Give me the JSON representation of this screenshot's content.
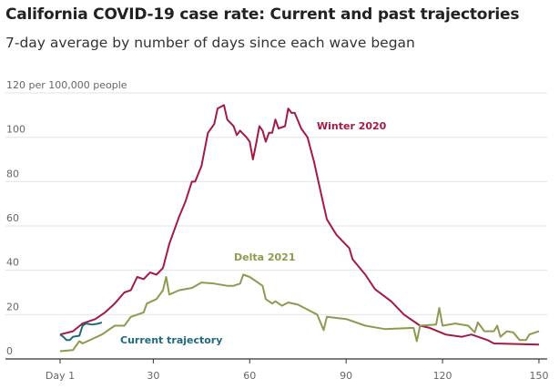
{
  "title": "California COVID-19 case rate: Current and past trajectories",
  "subtitle": "7-day average by number of days since each wave began",
  "chart_data": {
    "type": "line",
    "title": "California COVID-19 case rate: Current and past trajectories",
    "subtitle": "7-day average by number of days since each wave began",
    "ylabel": "per 100,000 people",
    "xlim": [
      1,
      150
    ],
    "ylim": [
      0,
      120
    ],
    "x_ticks": [
      1,
      30,
      60,
      90,
      120,
      150
    ],
    "x_tick_labels": [
      "Day 1",
      "30",
      "60",
      "90",
      "120",
      "150"
    ],
    "y_ticks": [
      0,
      20,
      40,
      60,
      80,
      100,
      120
    ],
    "y_tick_labels": [
      "0",
      "20",
      "40",
      "60",
      "80",
      "100",
      "120 per 100,000 people"
    ],
    "grid": true,
    "series": [
      {
        "name": "Winter 2020",
        "color": "#a31b43",
        "x": [
          1,
          5,
          8,
          12,
          15,
          18,
          21,
          23,
          25,
          27,
          29,
          31,
          33,
          35,
          38,
          40,
          42,
          43,
          45,
          47,
          49,
          50,
          52,
          53,
          55,
          56,
          57,
          59,
          60,
          61,
          62,
          63,
          64,
          65,
          66,
          67,
          68,
          69,
          71,
          72,
          73,
          74,
          76,
          78,
          80,
          82,
          84,
          87,
          91,
          92,
          96,
          99,
          104,
          108,
          113,
          116,
          121,
          126,
          129,
          134,
          136,
          150
        ],
        "y": [
          11,
          12.5,
          16,
          18,
          21,
          25,
          30,
          31,
          37,
          36,
          39,
          38,
          41,
          52,
          64,
          71,
          80,
          80,
          87,
          102,
          106,
          113,
          114.5,
          108,
          105,
          101,
          103,
          100,
          98,
          90,
          97,
          105,
          103,
          98,
          102,
          102,
          108,
          104,
          105,
          113,
          111,
          111,
          104,
          100,
          89,
          76,
          63,
          56,
          50,
          45,
          38,
          31.5,
          26,
          20,
          15,
          14,
          11,
          10,
          11,
          8.5,
          7,
          6.5
        ]
      },
      {
        "name": "Delta 2021",
        "color": "#8f9a50",
        "x": [
          1,
          5,
          7,
          8,
          11,
          14,
          18,
          21,
          23,
          27,
          28,
          31,
          33,
          34,
          35,
          38,
          42,
          45,
          49,
          53,
          55,
          57,
          58,
          60,
          62,
          64,
          65,
          67,
          68,
          70,
          72,
          75,
          77,
          81,
          83,
          84,
          90,
          96,
          102,
          111,
          112,
          113,
          118,
          119,
          120,
          124,
          128,
          130,
          131,
          133,
          136,
          137,
          138,
          140,
          142,
          144,
          146,
          147,
          150
        ],
        "y": [
          3.5,
          4,
          8,
          7,
          9,
          11,
          15,
          15,
          19,
          21,
          25,
          27,
          31,
          37,
          29,
          31,
          32,
          34.5,
          34,
          33,
          33,
          34,
          38,
          37,
          35,
          33,
          27,
          25,
          26,
          24,
          25.5,
          24.5,
          23,
          20,
          13,
          19,
          18,
          15,
          13.5,
          14,
          8,
          15,
          15.5,
          23,
          15,
          16,
          15,
          12,
          16.5,
          12.5,
          12.5,
          15,
          10,
          12.5,
          12,
          8.5,
          8.5,
          11,
          12.5
        ]
      },
      {
        "name": "Current trajectory",
        "color": "#1d6a7c",
        "x": [
          1,
          2,
          3,
          4,
          5,
          7,
          8,
          9,
          11,
          13,
          14
        ],
        "y": [
          11,
          10,
          8.5,
          8.5,
          10,
          10.5,
          15,
          16,
          15.5,
          16,
          16.5
        ]
      }
    ],
    "annotations": [
      "Winter 2020",
      "Delta 2021",
      "Current trajectory"
    ]
  }
}
